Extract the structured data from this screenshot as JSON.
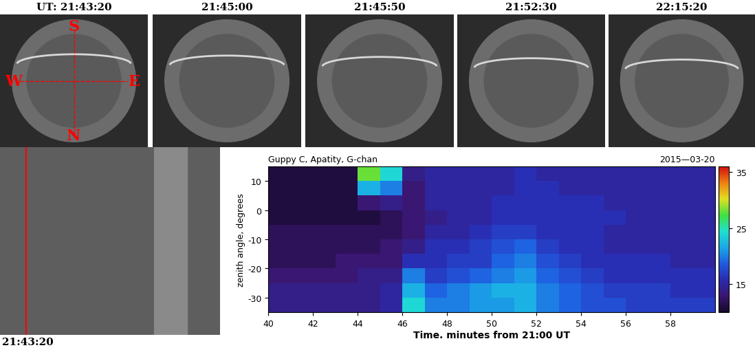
{
  "images": {
    "titles": [
      "UT: 21:43:20",
      "21:45:00",
      "21:45:50",
      "21:52:30",
      "22:15:20"
    ],
    "directions": [
      "S",
      "W",
      "E",
      "N"
    ]
  },
  "keogram": {
    "label": "21:43:20"
  },
  "chart_data": {
    "type": "heatmap",
    "title": "Guppy C, Apatity, G-chan",
    "subtitle": "2015—03-20",
    "x_label": "Time. minutes from 21:00 UT",
    "y_label": "zenith angle, degrees",
    "x": [
      40,
      41,
      42,
      43,
      44,
      45,
      46,
      47,
      48,
      49,
      50,
      51,
      52,
      53,
      54,
      55,
      56,
      57,
      58,
      59,
      60
    ],
    "y": [
      -35,
      -30,
      -25,
      -20,
      -15,
      -10,
      -5,
      0,
      5,
      10,
      15
    ],
    "cells": [
      [
        14,
        14,
        14,
        14,
        14,
        15,
        24,
        20,
        20,
        21,
        21,
        22,
        20,
        19,
        18,
        18,
        17,
        17,
        17,
        17
      ],
      [
        14,
        14,
        14,
        14,
        14,
        15,
        22,
        19,
        20,
        21,
        22,
        22,
        20,
        19,
        18,
        17,
        17,
        17,
        16,
        16
      ],
      [
        13,
        13,
        13,
        13,
        14,
        14,
        20,
        17,
        18,
        19,
        20,
        21,
        19,
        18,
        17,
        16,
        16,
        16,
        16,
        16
      ],
      [
        12,
        12,
        12,
        13,
        13,
        13,
        16,
        16,
        17,
        17,
        19,
        20,
        18,
        17,
        16,
        16,
        16,
        16,
        15,
        15
      ],
      [
        12,
        12,
        12,
        12,
        12,
        13,
        14,
        16,
        16,
        17,
        18,
        19,
        17,
        16,
        16,
        15,
        15,
        15,
        15,
        15
      ],
      [
        12,
        12,
        12,
        12,
        12,
        12,
        13,
        15,
        15,
        16,
        17,
        17,
        16,
        16,
        16,
        15,
        15,
        15,
        15,
        15
      ],
      [
        11,
        11,
        11,
        11,
        11,
        12,
        13,
        14,
        15,
        15,
        16,
        16,
        16,
        16,
        16,
        16,
        15,
        15,
        15,
        15
      ],
      [
        11,
        11,
        11,
        11,
        13,
        14,
        13,
        15,
        15,
        15,
        16,
        16,
        16,
        16,
        16,
        15,
        15,
        15,
        15,
        15
      ],
      [
        11,
        11,
        11,
        11,
        22,
        20,
        13,
        15,
        15,
        15,
        15,
        16,
        16,
        15,
        15,
        15,
        15,
        15,
        15,
        15
      ],
      [
        11,
        11,
        11,
        11,
        28,
        24,
        14,
        15,
        15,
        15,
        15,
        16,
        15,
        15,
        15,
        15,
        15,
        15,
        15,
        15
      ]
    ],
    "xlim": [
      40,
      60
    ],
    "ylim": [
      -35,
      15
    ],
    "xticks": [
      40,
      42,
      44,
      46,
      48,
      50,
      52,
      54,
      56,
      58
    ],
    "yticks": [
      -30,
      -20,
      -10,
      0,
      10
    ],
    "colorbar_range": [
      10,
      36
    ],
    "colorbar_ticks": [
      15,
      25,
      35
    ]
  }
}
